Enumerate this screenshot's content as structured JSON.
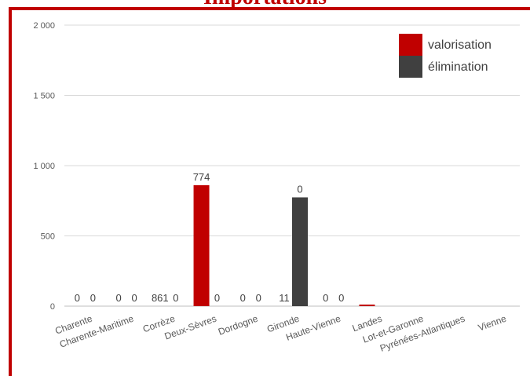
{
  "chart_data": {
    "type": "bar",
    "title": "Importations",
    "xlabel": "",
    "ylabel": "",
    "categories": [
      "Charente",
      "Charente-Maritime",
      "Corrèze",
      "Deux-Sèvres",
      "Dordogne",
      "Gironde",
      "Haute-Vienne",
      "Landes",
      "Lot-et-Garonne",
      "Pyrénées-Atlantiques",
      "Vienne"
    ],
    "series": [
      {
        "name": "valorisation",
        "color": "#c00000",
        "values": [
          0,
          0,
          0,
          861,
          0,
          0,
          0,
          11,
          0,
          0,
          0
        ]
      },
      {
        "name": "élimination",
        "color": "#404040",
        "values": [
          0,
          0,
          0,
          0,
          0,
          774,
          0,
          0,
          0,
          0,
          0
        ]
      }
    ],
    "data_labels": [
      "0",
      "0",
      "0",
      "0",
      "861",
      "0",
      "774",
      "0",
      "0",
      "0",
      "11",
      "0",
      "0",
      "0"
    ],
    "yticks": [
      "0",
      "500",
      "1 000",
      "1 500",
      "2 000"
    ],
    "ylim": [
      0,
      2000
    ],
    "grid": true,
    "legend_position": "top-right"
  }
}
